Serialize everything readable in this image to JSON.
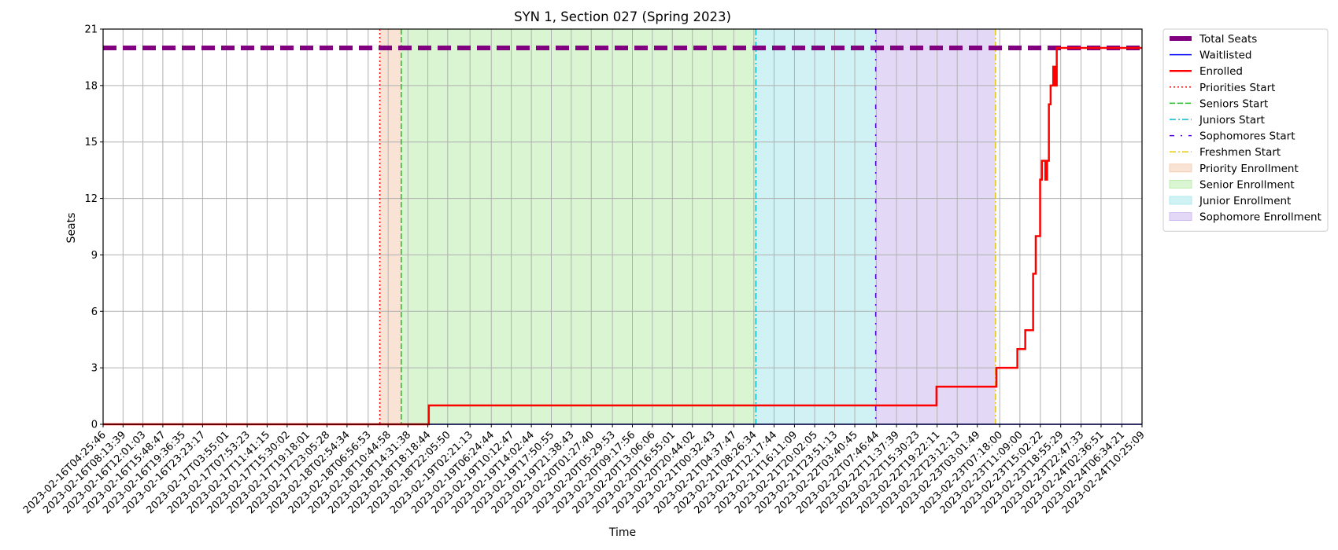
{
  "chart_data": {
    "type": "line",
    "title": "SYN 1, Section 027 (Spring 2023)",
    "xlabel": "Time",
    "ylabel": "Seats",
    "ylim": [
      0,
      21
    ],
    "yticks": [
      0,
      3,
      6,
      9,
      12,
      15,
      18,
      21
    ],
    "xlim": [
      "2023-02-16T04:25:46",
      "2023-02-24T10:25:09"
    ],
    "xtick_labels": [
      "2023-02-16T04:25:46",
      "2023-02-16T08:13:39",
      "2023-02-16T12:01:03",
      "2023-02-16T15:48:47",
      "2023-02-16T19:36:35",
      "2023-02-16T23:23:17",
      "2023-02-17T03:55:01",
      "2023-02-17T07:53:23",
      "2023-02-17T11:41:15",
      "2023-02-17T15:30:02",
      "2023-02-17T19:18:01",
      "2023-02-17T23:05:28",
      "2023-02-18T02:54:34",
      "2023-02-18T06:56:53",
      "2023-02-18T10:44:58",
      "2023-02-18T14:31:38",
      "2023-02-18T18:18:44",
      "2023-02-18T22:05:50",
      "2023-02-19T02:21:13",
      "2023-02-19T06:24:44",
      "2023-02-19T10:12:47",
      "2023-02-19T14:02:44",
      "2023-02-19T17:50:55",
      "2023-02-19T21:38:43",
      "2023-02-20T01:27:40",
      "2023-02-20T05:29:53",
      "2023-02-20T09:17:56",
      "2023-02-20T13:06:06",
      "2023-02-20T16:55:01",
      "2023-02-20T20:44:02",
      "2023-02-21T00:32:43",
      "2023-02-21T04:37:47",
      "2023-02-21T08:26:34",
      "2023-02-21T12:17:44",
      "2023-02-21T16:11:09",
      "2023-02-21T20:02:05",
      "2023-02-21T23:51:13",
      "2023-02-22T03:40:45",
      "2023-02-22T07:46:44",
      "2023-02-22T11:37:39",
      "2023-02-22T15:30:23",
      "2023-02-22T19:22:11",
      "2023-02-22T23:12:13",
      "2023-02-23T03:01:49",
      "2023-02-23T07:18:00",
      "2023-02-23T11:09:00",
      "2023-02-23T15:02:22",
      "2023-02-23T18:55:29",
      "2023-02-23T22:47:33",
      "2023-02-24T02:36:51",
      "2023-02-24T06:34:21",
      "2023-02-24T10:25:09"
    ],
    "grid": true,
    "legend_placement": "outside-upper-right",
    "series": [
      {
        "name": "Total Seats",
        "color": "#800080",
        "style": "dashed-thick",
        "x": [
          "2023-02-16T04:25:46",
          "2023-02-24T10:25:09"
        ],
        "y": [
          20,
          20
        ]
      },
      {
        "name": "Waitlisted",
        "color": "#0000ff",
        "style": "solid-thin",
        "x": [
          "2023-02-16T04:25:46",
          "2023-02-24T10:25:09"
        ],
        "y": [
          0,
          0
        ]
      },
      {
        "name": "Enrolled",
        "color": "#ff0000",
        "style": "solid-step",
        "x": [
          "2023-02-16T04:25:46",
          "2023-02-18T18:30:00",
          "2023-02-22T19:15:00",
          "2023-02-23T06:40:00",
          "2023-02-23T10:40:00",
          "2023-02-23T12:10:00",
          "2023-02-23T13:40:00",
          "2023-02-23T14:10:00",
          "2023-02-23T15:00:00",
          "2023-02-23T15:20:00",
          "2023-02-23T16:00:00",
          "2023-02-23T16:20:00",
          "2023-02-23T16:40:00",
          "2023-02-23T17:00:00",
          "2023-02-23T17:30:00",
          "2023-02-23T17:50:00",
          "2023-02-23T18:10:00",
          "2023-02-23T18:30:00",
          "2023-02-23T19:00:00",
          "2023-02-24T10:25:09"
        ],
        "y": [
          0,
          1,
          2,
          3,
          4,
          5,
          8,
          10,
          13,
          14,
          13,
          14,
          17,
          18,
          19,
          18,
          20,
          20,
          20,
          20
        ]
      }
    ],
    "vlines": [
      {
        "name": "Priorities Start",
        "x": "2023-02-18T09:10:00",
        "color": "#ff0000",
        "style": "dotted"
      },
      {
        "name": "Seniors Start",
        "x": "2023-02-18T13:15:00",
        "color": "#22bb22",
        "style": "dashed"
      },
      {
        "name": "Juniors Start",
        "x": "2023-02-21T08:50:00",
        "color": "#00bcd4",
        "style": "dashdot"
      },
      {
        "name": "Sophomores Start",
        "x": "2023-02-22T07:40:00",
        "color": "#5500dd",
        "style": "loosely-dashdot"
      },
      {
        "name": "Freshmen Start",
        "x": "2023-02-23T06:30:00",
        "color": "#e6c800",
        "style": "dashdot"
      }
    ],
    "spans": [
      {
        "name": "Priority Enrollment",
        "from": "2023-02-18T09:10:00",
        "to": "2023-02-18T13:15:00",
        "color": "#f4c7a9"
      },
      {
        "name": "Senior Enrollment",
        "from": "2023-02-18T13:15:00",
        "to": "2023-02-21T08:50:00",
        "color": "#b4eba4"
      },
      {
        "name": "Junior Enrollment",
        "from": "2023-02-21T08:50:00",
        "to": "2023-02-22T07:40:00",
        "color": "#a4e6ea"
      },
      {
        "name": "Sophomore Enrollment",
        "from": "2023-02-22T07:40:00",
        "to": "2023-02-23T06:30:00",
        "color": "#c7b2ee"
      }
    ]
  }
}
